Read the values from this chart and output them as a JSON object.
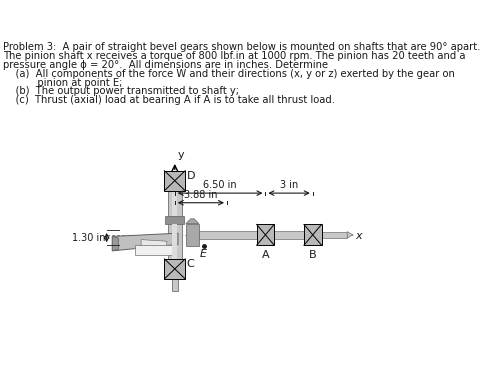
{
  "title_line1": "Problem 3:  A pair of straight bevel gears shown below is mounted on shafts that are 90° apart.",
  "title_line2": "The pinion shaft x receives a torque of 800 lbf.in at 1000 rpm. The pinion has 20 teeth and a",
  "title_line3": "pressure angle ϕ = 20°.  All dimensions are in inches. Determine",
  "item_a": "    (a)  All components of the force W and their directions (x, y or z) exerted by the gear on",
  "item_a2": "           pinion at point E;",
  "item_b": "    (b)  The output power transmitted to shaft y;",
  "item_c": "    (c)  Thrust (axial) load at bearing A if A is to take all thrust load.",
  "dim_650": "6.50 in",
  "dim_388": "3.88 in",
  "dim_3": "3 in",
  "dim_130": "1.30 in",
  "label_A": "A",
  "label_B": "B",
  "label_C": "C",
  "label_D": "D",
  "label_E": "E",
  "label_x": "x",
  "label_y": "y",
  "bg_color": "#ffffff",
  "text_color": "#1a1a1a",
  "shaft_light": "#c8c8c8",
  "shaft_mid": "#a8a8a8",
  "shaft_dark": "#707070",
  "gear_light": "#c0c0c0",
  "gear_mid": "#989898",
  "gear_dark": "#606060",
  "bearing_fill": "#b8b8b8",
  "hub_fill": "#909090",
  "line_color": "#000000"
}
